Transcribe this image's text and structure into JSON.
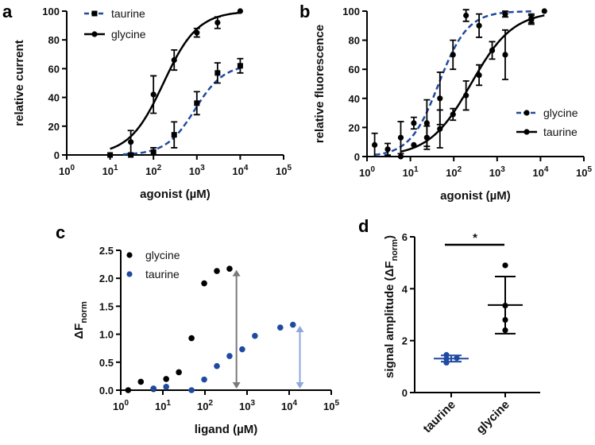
{
  "chart_data": [
    {
      "panel": "a",
      "type": "scatter",
      "xlabel": "agonist (µM)",
      "ylabel": "relative current",
      "xscale": "log",
      "xlim_exp": [
        0,
        5
      ],
      "ylim": [
        0,
        100
      ],
      "x_tick_exponents": [
        0,
        1,
        2,
        3,
        4,
        5
      ],
      "y_ticks": [
        0,
        20,
        40,
        60,
        80,
        100
      ],
      "legend_placement": "top-left",
      "series": [
        {
          "name": "taurine",
          "color": "#1f4aa0",
          "dashed": true,
          "marker": "square",
          "x": [
            10,
            30,
            100,
            300,
            1000,
            3000,
            10000
          ],
          "y": [
            0,
            0,
            2,
            14,
            36,
            57,
            62
          ],
          "err": [
            0,
            0,
            3,
            9,
            8,
            7,
            5
          ],
          "fit": {
            "bottom": 0,
            "top": 63,
            "ec50": 900,
            "hill": 1.3,
            "xmin": 20,
            "xmax": 10000
          }
        },
        {
          "name": "glycine",
          "color": "#000000",
          "dashed": false,
          "marker": "circle",
          "x": [
            10,
            30,
            100,
            300,
            1000,
            3000,
            10000
          ],
          "y": [
            0,
            9,
            42,
            66,
            85,
            92,
            100
          ],
          "err": [
            0,
            8,
            13,
            7,
            3,
            4,
            0
          ],
          "fit": {
            "bottom": 0,
            "top": 100,
            "ec50": 170,
            "hill": 1.1,
            "xmin": 10,
            "xmax": 10000
          }
        }
      ]
    },
    {
      "panel": "b",
      "type": "scatter",
      "xlabel": "agonist (µM)",
      "ylabel": "relative fluorescence",
      "xscale": "log",
      "xlim_exp": [
        0,
        5
      ],
      "ylim": [
        0,
        100
      ],
      "x_tick_exponents": [
        0,
        1,
        2,
        3,
        4,
        5
      ],
      "y_ticks": [
        0,
        20,
        40,
        60,
        80,
        100
      ],
      "legend_placement": "center-right",
      "series": [
        {
          "name": "glycine",
          "color": "#1f4aa0",
          "dashed": true,
          "marker": "circle",
          "x": [
            1.5,
            3,
            6,
            12,
            24,
            48,
            96,
            192,
            384,
            1536,
            6144,
            12288
          ],
          "y": [
            8,
            5,
            13,
            23,
            23,
            40,
            70,
            97,
            90,
            98,
            94,
            100
          ],
          "err": [
            8,
            4,
            11,
            4,
            16,
            18,
            10,
            4,
            8,
            2,
            3,
            0
          ],
          "fit": {
            "bottom": 0,
            "top": 100,
            "ec50": 45,
            "hill": 1.3,
            "xmin": 1.5,
            "xmax": 6144
          }
        },
        {
          "name": "taurine",
          "color": "#000000",
          "dashed": false,
          "marker": "circle",
          "x": [
            6,
            12,
            24,
            48,
            96,
            192,
            384,
            768,
            1536,
            6144
          ],
          "y": [
            0,
            8,
            13,
            19,
            29,
            42,
            56,
            73,
            70,
            95
          ],
          "err": [
            0,
            0,
            8,
            13,
            4,
            10,
            7,
            6,
            17,
            3
          ],
          "fit": {
            "bottom": 0,
            "top": 100,
            "ec50": 250,
            "hill": 0.9,
            "xmin": 6,
            "xmax": 12288
          }
        }
      ]
    },
    {
      "panel": "c",
      "type": "scatter",
      "xlabel": "ligand (µM)",
      "ylabel": "ΔF",
      "ylabel_sub": "norm",
      "xscale": "log",
      "xlim_exp": [
        0,
        5
      ],
      "ylim": [
        0,
        2.5
      ],
      "x_tick_exponents": [
        0,
        1,
        2,
        3,
        4,
        5
      ],
      "y_ticks": [
        "0.0",
        "0.5",
        "1.0",
        "1.5",
        "2.0",
        "2.5"
      ],
      "legend_placement": "top-left",
      "series": [
        {
          "name": "glycine",
          "color": "#000000",
          "x": [
            1.5,
            3,
            6,
            12,
            24,
            48,
            96,
            192,
            384
          ],
          "y": [
            0,
            0.15,
            0.02,
            0.2,
            0.32,
            0.93,
            1.91,
            2.13,
            2.17
          ]
        },
        {
          "name": "taurine",
          "color": "#1f4aa0",
          "x": [
            6,
            12,
            48,
            96,
            192,
            384,
            768,
            1536,
            6144,
            12288
          ],
          "y": [
            0.03,
            0.06,
            0,
            0.19,
            0.43,
            0.61,
            0.73,
            0.97,
            1.12,
            1.17
          ]
        }
      ],
      "arrows": [
        {
          "color": "#7a7a7a",
          "x": 560,
          "y_from": 0,
          "y_to": 2.15
        },
        {
          "color": "#8fa8dc",
          "x": 18000,
          "y_from": 0,
          "y_to": 1.15
        }
      ]
    },
    {
      "panel": "d",
      "type": "scatter",
      "ylabel": "signal amplitude (ΔF",
      "ylabel_sub": "norm",
      "ylabel_end": ")",
      "ylim": [
        0,
        6
      ],
      "y_ticks": [
        0,
        2,
        4,
        6
      ],
      "categories": [
        "taurine",
        "glycine"
      ],
      "series": [
        {
          "name": "taurine",
          "color": "#1f4aa0",
          "values": [
            1.45,
            1.3,
            1.15,
            1.33
          ],
          "mean": 1.31,
          "sd": 0.12
        },
        {
          "name": "glycine",
          "color": "#000000",
          "values": [
            4.9,
            3.35,
            2.8,
            2.4
          ],
          "mean": 3.37,
          "sd": 1.1
        }
      ],
      "significance": "*"
    }
  ]
}
